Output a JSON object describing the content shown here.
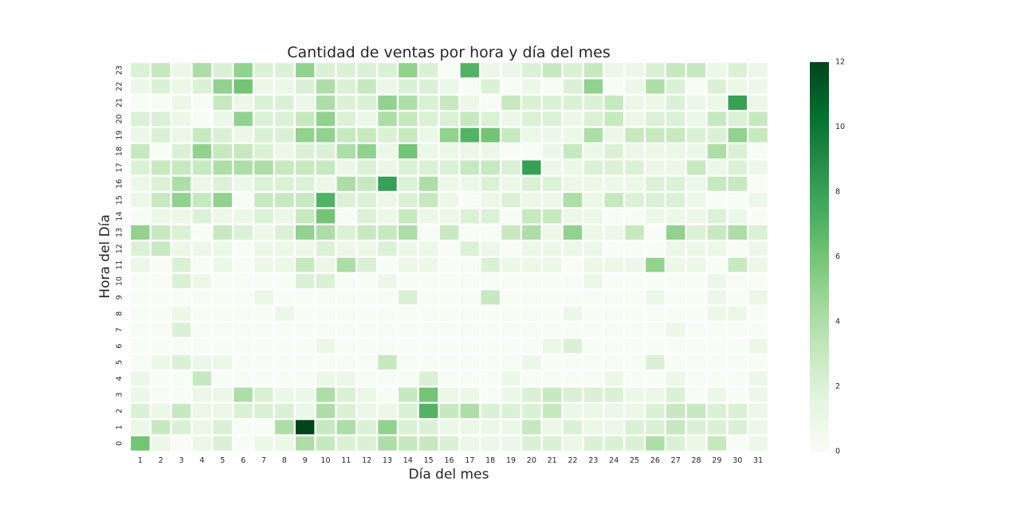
{
  "chart_data": {
    "type": "heatmap",
    "title": "Cantidad de ventas por hora y día del mes",
    "xlabel": "Día del mes",
    "ylabel": "Hora del Día",
    "x_categories": [
      "1",
      "2",
      "3",
      "4",
      "5",
      "6",
      "7",
      "8",
      "9",
      "10",
      "11",
      "12",
      "13",
      "14",
      "15",
      "16",
      "17",
      "18",
      "19",
      "20",
      "21",
      "22",
      "23",
      "24",
      "25",
      "26",
      "27",
      "28",
      "29",
      "30",
      "31"
    ],
    "y_categories": [
      "0",
      "1",
      "2",
      "3",
      "4",
      "5",
      "6",
      "7",
      "8",
      "9",
      "10",
      "11",
      "12",
      "13",
      "14",
      "15",
      "16",
      "17",
      "18",
      "19",
      "20",
      "21",
      "22",
      "23"
    ],
    "colorbar": {
      "min": 0,
      "max": 12,
      "ticks": [
        "0",
        "2",
        "4",
        "6",
        "8",
        "10",
        "12"
      ],
      "colormap": "Greens"
    },
    "grid": false,
    "values": [
      [
        6,
        1,
        0,
        1,
        2,
        0,
        1,
        1,
        4,
        3,
        2,
        2,
        4,
        3,
        3,
        2,
        1,
        1,
        1,
        2,
        2,
        1,
        2,
        2,
        2,
        4,
        2,
        1,
        3,
        0,
        1
      ],
      [
        1,
        3,
        2,
        1,
        2,
        0,
        0,
        4,
        12,
        3,
        4,
        2,
        5,
        2,
        2,
        1,
        1,
        1,
        1,
        3,
        1,
        2,
        1,
        1,
        2,
        2,
        3,
        2,
        2,
        2,
        1
      ],
      [
        2,
        1,
        3,
        1,
        1,
        2,
        2,
        2,
        1,
        4,
        2,
        1,
        1,
        2,
        7,
        3,
        4,
        2,
        2,
        2,
        3,
        1,
        1,
        1,
        1,
        2,
        3,
        3,
        2,
        2,
        1
      ],
      [
        1,
        0,
        0,
        1,
        1,
        4,
        2,
        1,
        1,
        4,
        2,
        1,
        0,
        3,
        6,
        1,
        1,
        0,
        1,
        2,
        3,
        2,
        2,
        2,
        1,
        1,
        2,
        0,
        1,
        0,
        1
      ],
      [
        1,
        0,
        0,
        3,
        0,
        0,
        0,
        0,
        0,
        1,
        1,
        0,
        0,
        0,
        2,
        0,
        0,
        0,
        1,
        0,
        0,
        0,
        0,
        1,
        0,
        0,
        1,
        0,
        0,
        0,
        1
      ],
      [
        0,
        1,
        2,
        1,
        1,
        0,
        0,
        0,
        0,
        0,
        0,
        0,
        3,
        0,
        0,
        0,
        0,
        0,
        0,
        1,
        0,
        0,
        0,
        0,
        0,
        2,
        0,
        0,
        0,
        0,
        0
      ],
      [
        0,
        0,
        0,
        0,
        0,
        0,
        0,
        0,
        0,
        1,
        0,
        0,
        0,
        0,
        0,
        0,
        0,
        0,
        0,
        0,
        1,
        2,
        0,
        0,
        0,
        0,
        0,
        0,
        0,
        0,
        1
      ],
      [
        0,
        0,
        2,
        0,
        0,
        0,
        0,
        0,
        0,
        0,
        0,
        0,
        0,
        0,
        0,
        0,
        0,
        0,
        0,
        0,
        0,
        0,
        0,
        0,
        0,
        0,
        1,
        0,
        0,
        0,
        0
      ],
      [
        0,
        0,
        1,
        0,
        0,
        0,
        0,
        1,
        0,
        0,
        0,
        0,
        0,
        0,
        0,
        0,
        0,
        0,
        0,
        0,
        0,
        1,
        0,
        0,
        0,
        0,
        0,
        0,
        1,
        1,
        0
      ],
      [
        0,
        0,
        0,
        0,
        0,
        0,
        1,
        0,
        0,
        0,
        0,
        0,
        0,
        2,
        0,
        0,
        0,
        3,
        0,
        0,
        0,
        0,
        0,
        0,
        0,
        1,
        0,
        0,
        1,
        0,
        1
      ],
      [
        0,
        0,
        2,
        1,
        0,
        0,
        0,
        0,
        2,
        2,
        0,
        0,
        1,
        0,
        0,
        0,
        0,
        0,
        0,
        0,
        0,
        0,
        1,
        0,
        0,
        0,
        0,
        0,
        1,
        0,
        0
      ],
      [
        1,
        0,
        2,
        0,
        1,
        0,
        1,
        1,
        3,
        1,
        4,
        2,
        0,
        1,
        1,
        0,
        0,
        2,
        1,
        1,
        1,
        0,
        1,
        1,
        1,
        5,
        1,
        1,
        0,
        3,
        1
      ],
      [
        2,
        3,
        1,
        1,
        1,
        0,
        1,
        1,
        1,
        2,
        1,
        1,
        2,
        1,
        1,
        0,
        2,
        1,
        0,
        1,
        1,
        1,
        1,
        0,
        0,
        0,
        1,
        1,
        1,
        0,
        1
      ],
      [
        5,
        3,
        2,
        0,
        3,
        2,
        1,
        2,
        5,
        4,
        2,
        3,
        3,
        4,
        0,
        3,
        0,
        0,
        3,
        4,
        1,
        5,
        1,
        1,
        3,
        0,
        5,
        2,
        3,
        4,
        2
      ],
      [
        0,
        1,
        1,
        2,
        1,
        1,
        2,
        1,
        3,
        6,
        0,
        2,
        1,
        3,
        1,
        1,
        2,
        2,
        0,
        3,
        3,
        1,
        1,
        0,
        0,
        1,
        1,
        1,
        2,
        1,
        0
      ],
      [
        1,
        3,
        5,
        3,
        5,
        0,
        3,
        3,
        3,
        7,
        2,
        2,
        1,
        2,
        3,
        1,
        0,
        1,
        2,
        1,
        1,
        4,
        1,
        3,
        2,
        2,
        2,
        1,
        0,
        0,
        1
      ],
      [
        1,
        2,
        4,
        1,
        2,
        1,
        2,
        2,
        2,
        1,
        4,
        3,
        8,
        2,
        4,
        1,
        1,
        2,
        1,
        2,
        2,
        1,
        1,
        1,
        1,
        2,
        2,
        1,
        3,
        3,
        0
      ],
      [
        2,
        3,
        3,
        3,
        4,
        4,
        4,
        3,
        3,
        3,
        1,
        2,
        1,
        2,
        2,
        2,
        3,
        3,
        2,
        8,
        1,
        1,
        2,
        2,
        2,
        1,
        1,
        3,
        1,
        2,
        1
      ],
      [
        3,
        0,
        2,
        5,
        3,
        3,
        2,
        1,
        2,
        2,
        4,
        5,
        1,
        6,
        1,
        1,
        1,
        1,
        0,
        0,
        1,
        3,
        1,
        2,
        1,
        1,
        1,
        1,
        4,
        2,
        0
      ],
      [
        1,
        2,
        1,
        3,
        2,
        1,
        2,
        2,
        5,
        5,
        3,
        3,
        2,
        3,
        1,
        5,
        7,
        6,
        3,
        1,
        1,
        1,
        4,
        1,
        3,
        3,
        3,
        2,
        2,
        5,
        3
      ],
      [
        2,
        2,
        1,
        0,
        1,
        5,
        2,
        2,
        3,
        5,
        2,
        1,
        4,
        3,
        2,
        2,
        3,
        2,
        1,
        2,
        2,
        1,
        2,
        3,
        1,
        2,
        2,
        1,
        3,
        2,
        3
      ],
      [
        0,
        0,
        1,
        0,
        3,
        1,
        2,
        2,
        1,
        4,
        2,
        2,
        5,
        4,
        2,
        3,
        1,
        0,
        3,
        2,
        2,
        2,
        2,
        3,
        1,
        1,
        2,
        1,
        1,
        8,
        1
      ],
      [
        1,
        2,
        1,
        2,
        5,
        6,
        1,
        1,
        2,
        4,
        2,
        3,
        1,
        2,
        2,
        1,
        0,
        2,
        0,
        1,
        0,
        2,
        5,
        0,
        1,
        4,
        2,
        0,
        2,
        1,
        1
      ],
      [
        2,
        3,
        1,
        4,
        2,
        5,
        2,
        2,
        5,
        2,
        2,
        2,
        2,
        5,
        2,
        0,
        7,
        1,
        1,
        2,
        3,
        2,
        3,
        1,
        1,
        2,
        3,
        3,
        1,
        2,
        1
      ]
    ]
  }
}
